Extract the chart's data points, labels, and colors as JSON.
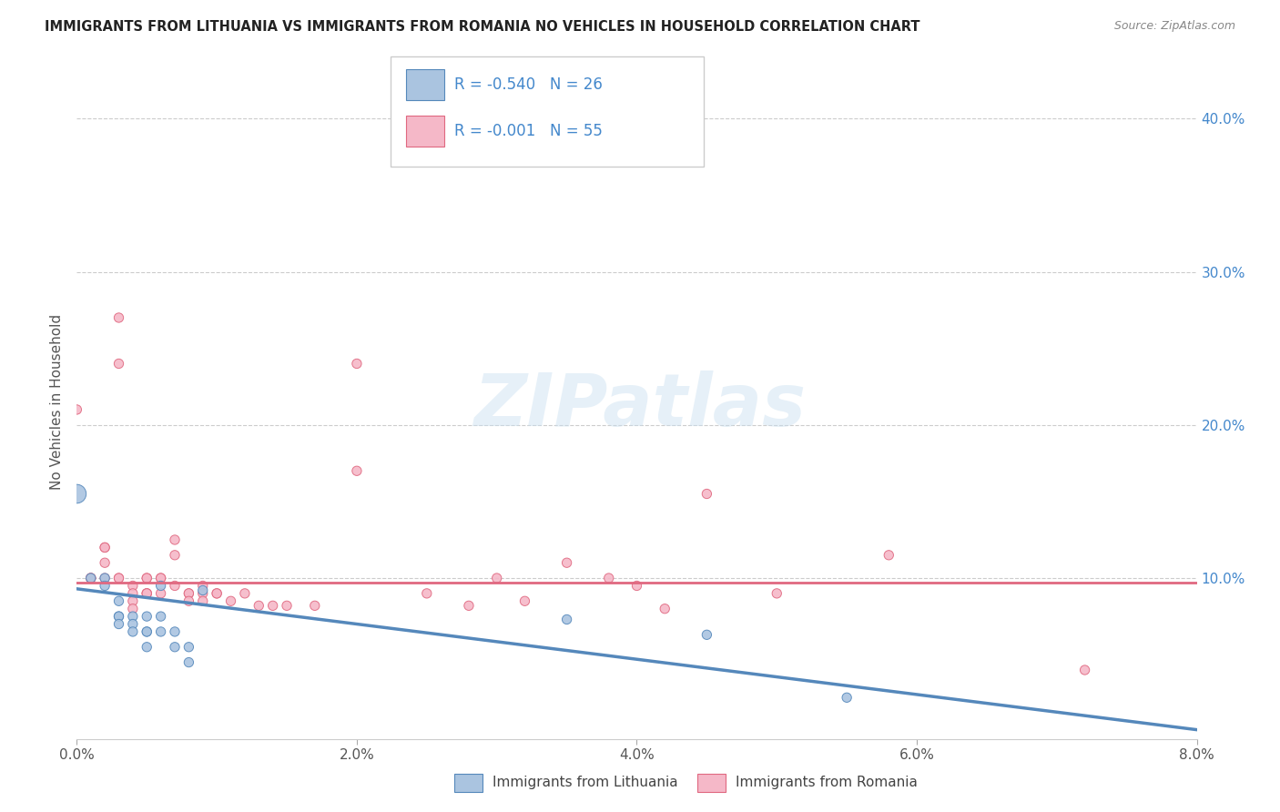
{
  "title": "IMMIGRANTS FROM LITHUANIA VS IMMIGRANTS FROM ROMANIA NO VEHICLES IN HOUSEHOLD CORRELATION CHART",
  "source": "Source: ZipAtlas.com",
  "ylabel": "No Vehicles in Household",
  "right_yticks": [
    "40.0%",
    "30.0%",
    "20.0%",
    "10.0%"
  ],
  "right_ytick_vals": [
    0.4,
    0.3,
    0.2,
    0.1
  ],
  "legend_blue_r": "-0.540",
  "legend_blue_n": "26",
  "legend_pink_r": "-0.001",
  "legend_pink_n": "55",
  "legend_blue_label": "Immigrants from Lithuania",
  "legend_pink_label": "Immigrants from Romania",
  "background_color": "#ffffff",
  "grid_color": "#cccccc",
  "blue_color": "#aac4e0",
  "blue_dark": "#5588bb",
  "pink_color": "#f5b8c8",
  "pink_dark": "#e06880",
  "accent_blue": "#4488cc",
  "xmin": 0.0,
  "xmax": 0.08,
  "ymin": -0.005,
  "ymax": 0.435,
  "blue_x": [
    0.0,
    0.001,
    0.002,
    0.002,
    0.003,
    0.003,
    0.003,
    0.003,
    0.004,
    0.004,
    0.004,
    0.005,
    0.005,
    0.005,
    0.005,
    0.006,
    0.006,
    0.006,
    0.007,
    0.007,
    0.008,
    0.008,
    0.009,
    0.035,
    0.045,
    0.055
  ],
  "blue_y": [
    0.155,
    0.1,
    0.1,
    0.095,
    0.085,
    0.075,
    0.075,
    0.07,
    0.075,
    0.07,
    0.065,
    0.075,
    0.065,
    0.065,
    0.055,
    0.095,
    0.075,
    0.065,
    0.065,
    0.055,
    0.055,
    0.045,
    0.092,
    0.073,
    0.063,
    0.022
  ],
  "blue_sizes": [
    220,
    55,
    55,
    55,
    55,
    55,
    55,
    55,
    55,
    55,
    55,
    55,
    55,
    55,
    55,
    55,
    55,
    55,
    55,
    55,
    55,
    55,
    55,
    55,
    55,
    55
  ],
  "pink_x": [
    0.0,
    0.001,
    0.001,
    0.001,
    0.002,
    0.002,
    0.002,
    0.002,
    0.003,
    0.003,
    0.003,
    0.003,
    0.004,
    0.004,
    0.004,
    0.004,
    0.005,
    0.005,
    0.005,
    0.005,
    0.005,
    0.006,
    0.006,
    0.006,
    0.007,
    0.007,
    0.007,
    0.008,
    0.008,
    0.008,
    0.009,
    0.009,
    0.009,
    0.01,
    0.01,
    0.011,
    0.012,
    0.013,
    0.014,
    0.015,
    0.017,
    0.02,
    0.02,
    0.025,
    0.028,
    0.03,
    0.032,
    0.035,
    0.038,
    0.04,
    0.042,
    0.045,
    0.05,
    0.058,
    0.072
  ],
  "pink_y": [
    0.21,
    0.1,
    0.1,
    0.1,
    0.12,
    0.12,
    0.11,
    0.1,
    0.27,
    0.24,
    0.1,
    0.1,
    0.095,
    0.09,
    0.085,
    0.08,
    0.1,
    0.1,
    0.09,
    0.09,
    0.09,
    0.1,
    0.1,
    0.09,
    0.125,
    0.115,
    0.095,
    0.09,
    0.09,
    0.085,
    0.095,
    0.09,
    0.085,
    0.09,
    0.09,
    0.085,
    0.09,
    0.082,
    0.082,
    0.082,
    0.082,
    0.24,
    0.17,
    0.09,
    0.082,
    0.1,
    0.085,
    0.11,
    0.1,
    0.095,
    0.08,
    0.155,
    0.09,
    0.115,
    0.04
  ],
  "pink_sizes": [
    55,
    55,
    55,
    55,
    55,
    55,
    55,
    55,
    55,
    55,
    55,
    55,
    55,
    55,
    55,
    55,
    55,
    55,
    55,
    55,
    55,
    55,
    55,
    55,
    55,
    55,
    55,
    55,
    55,
    55,
    55,
    55,
    55,
    55,
    55,
    55,
    55,
    55,
    55,
    55,
    55,
    55,
    55,
    55,
    55,
    55,
    55,
    55,
    55,
    55,
    55,
    55,
    55,
    55,
    55
  ],
  "blue_line_x": [
    0.0,
    0.08
  ],
  "blue_line_y": [
    0.093,
    0.001
  ],
  "pink_line_y": 0.097,
  "xticks": [
    0.0,
    0.02,
    0.04,
    0.06,
    0.08
  ],
  "xtick_labels": [
    "0.0%",
    "2.0%",
    "4.0%",
    "6.0%",
    "8.0%"
  ]
}
